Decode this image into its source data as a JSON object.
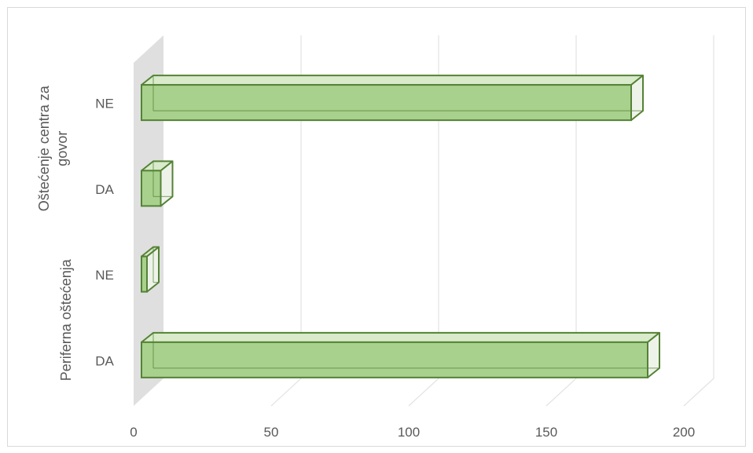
{
  "chart_data": {
    "type": "bar",
    "orientation": "horizontal",
    "style": "3d-clustered",
    "groups": [
      {
        "label": "Oštećenje centra za govor",
        "categories": [
          "DA",
          "NE"
        ]
      },
      {
        "label": "Periferna oštećenja",
        "categories": [
          "DA",
          "NE"
        ]
      }
    ],
    "categories": [
      "Periferna oštećenja - DA",
      "Periferna oštećenja - NE",
      "Oštećenje centra za govor - DA",
      "Oštećenje centra za govor - NE"
    ],
    "series": [
      {
        "values": [
          184,
          2,
          7,
          178
        ]
      }
    ],
    "xlim": [
      0,
      200
    ],
    "x_ticks": [
      "0",
      "50",
      "100",
      "150",
      "200"
    ],
    "grid": true,
    "colors": {
      "bar_fill": "#a9d18e",
      "bar_edge": "#548235",
      "grid": "#e3e3e3",
      "wall": "#d9d9d9",
      "text": "#595959"
    }
  }
}
